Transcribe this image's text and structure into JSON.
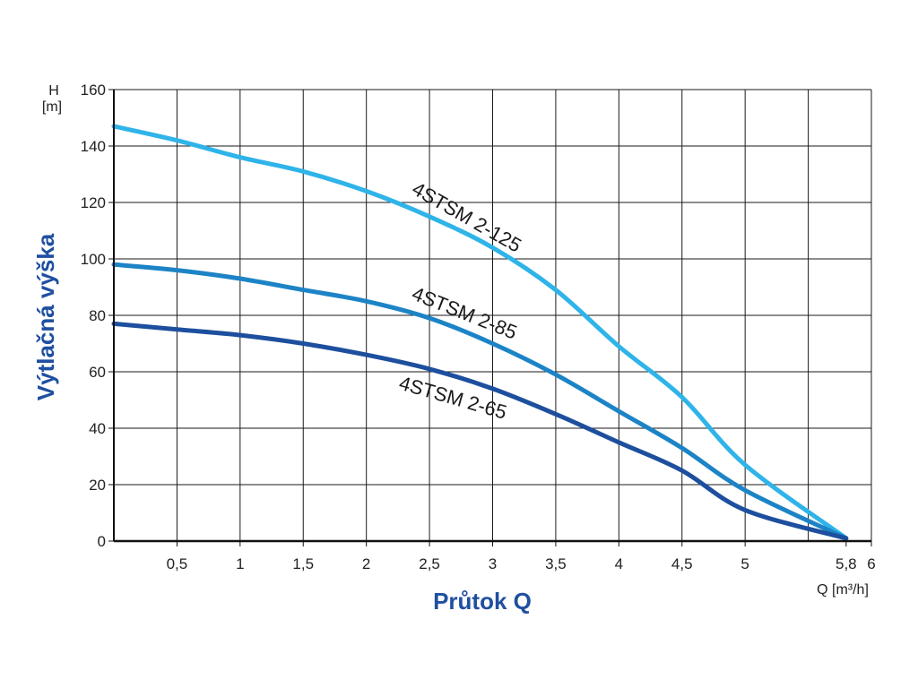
{
  "chart_data": {
    "type": "line",
    "title": "",
    "xlabel": "Průtok Q",
    "ylabel": "Výtlačná výška",
    "x_unit_label": "Q [m³/h]",
    "y_unit_label_top": "H",
    "y_unit_label_bottom": "[m]",
    "xlim": [
      0,
      6
    ],
    "ylim": [
      0,
      160
    ],
    "x_ticks": [
      0.5,
      1,
      1.5,
      2,
      2.5,
      3,
      3.5,
      4,
      4.5,
      5,
      5.8,
      6
    ],
    "x_tick_labels": [
      "0,5",
      "1",
      "1,5",
      "2",
      "2,5",
      "3",
      "3,5",
      "4",
      "4,5",
      "5",
      "5,8",
      "6"
    ],
    "y_ticks": [
      0,
      20,
      40,
      60,
      80,
      100,
      120,
      140,
      160
    ],
    "y_tick_labels": [
      "0",
      "20",
      "40",
      "60",
      "80",
      "100",
      "120",
      "140",
      "160"
    ],
    "grid": true,
    "axis_title_color": "#1f4fa0",
    "series": [
      {
        "name": "4STSM 2-125",
        "color": "#2fb4e9",
        "x": [
          0,
          0.5,
          1,
          1.5,
          2,
          2.5,
          3,
          3.5,
          4,
          4.5,
          5,
          5.8
        ],
        "y": [
          147,
          142,
          136,
          131,
          124,
          115,
          104,
          89,
          69,
          51,
          27,
          1
        ]
      },
      {
        "name": "4STSM 2-85",
        "color": "#1c84c6",
        "x": [
          0,
          0.5,
          1,
          1.5,
          2,
          2.5,
          3,
          3.5,
          4,
          4.5,
          5,
          5.8
        ],
        "y": [
          98,
          96,
          93,
          89,
          85,
          79,
          70,
          59,
          46,
          33,
          18,
          1
        ]
      },
      {
        "name": "4STSM 2-65",
        "color": "#1d4f9e",
        "x": [
          0,
          0.5,
          1,
          1.5,
          2,
          2.5,
          3,
          3.5,
          4,
          4.5,
          5,
          5.8
        ],
        "y": [
          77,
          75,
          73,
          70,
          66,
          61,
          54,
          45,
          35,
          25,
          11,
          1
        ]
      }
    ]
  }
}
